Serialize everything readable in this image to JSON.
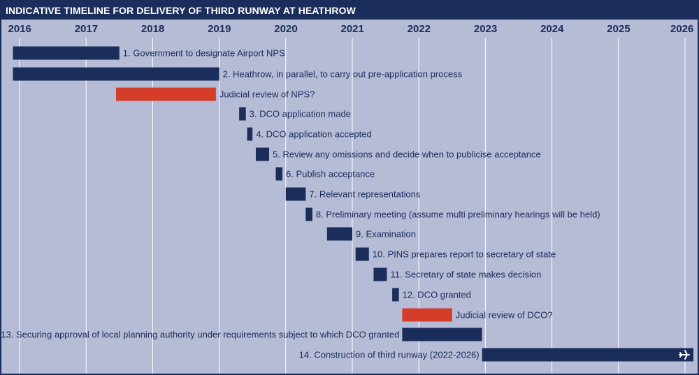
{
  "header": {
    "title": "INDICATIVE TIMELINE FOR DELIVERY OF THIRD RUNWAY AT HEATHROW"
  },
  "colors": {
    "navy": "#1b2d5b",
    "red": "#d43d2a",
    "background": "#b6bbd6",
    "gridline": "#ffffff"
  },
  "chart_data": {
    "type": "gantt",
    "title": "INDICATIVE TIMELINE FOR DELIVERY OF THIRD RUNWAY AT HEATHROW",
    "x_axis": {
      "ticks": [
        "2016",
        "2017",
        "2018",
        "2019",
        "2020",
        "2021",
        "2022",
        "2023",
        "2024",
        "2025",
        "2026"
      ],
      "range": [
        2016,
        2026.2
      ],
      "position": "top",
      "grid": true
    },
    "tasks": [
      {
        "label": "1. Government to designate Airport NPS",
        "start": 2015.9,
        "end": 2017.5,
        "color": "navy",
        "label_side": "right"
      },
      {
        "label": "2. Heathrow, in parallel, to carry out pre-application process",
        "start": 2015.9,
        "end": 2019.0,
        "color": "navy",
        "label_side": "right"
      },
      {
        "label": "Judicial review of NPS?",
        "start": 2017.45,
        "end": 2018.95,
        "color": "red",
        "label_side": "right"
      },
      {
        "label": "3. DCO application made",
        "start": 2019.3,
        "end": 2019.4,
        "color": "navy",
        "label_side": "right"
      },
      {
        "label": "4. DCO application accepted",
        "start": 2019.42,
        "end": 2019.5,
        "color": "navy",
        "label_side": "right"
      },
      {
        "label": "5. Review any omissions and decide when to publicise acceptance",
        "start": 2019.55,
        "end": 2019.75,
        "color": "navy",
        "label_side": "right"
      },
      {
        "label": "6. Publish acceptance",
        "start": 2019.85,
        "end": 2019.95,
        "color": "navy",
        "label_side": "right"
      },
      {
        "label": "7. Relevant representations",
        "start": 2020.0,
        "end": 2020.3,
        "color": "navy",
        "label_side": "right"
      },
      {
        "label": "8. Preliminary meeting (assume multi preliminary hearings will be held)",
        "start": 2020.3,
        "end": 2020.4,
        "color": "navy",
        "label_side": "right"
      },
      {
        "label": "9. Examination",
        "start": 2020.62,
        "end": 2021.0,
        "color": "navy",
        "label_side": "right"
      },
      {
        "label": "10. PINS prepares report to secretary of state",
        "start": 2021.05,
        "end": 2021.25,
        "color": "navy",
        "label_side": "right"
      },
      {
        "label": "11. Secretary of state makes decision",
        "start": 2021.32,
        "end": 2021.52,
        "color": "navy",
        "label_side": "right"
      },
      {
        "label": "12. DCO granted",
        "start": 2021.6,
        "end": 2021.7,
        "color": "navy",
        "label_side": "right"
      },
      {
        "label": "Judicial review of DCO?",
        "start": 2021.75,
        "end": 2022.5,
        "color": "red",
        "label_side": "right"
      },
      {
        "label": "13. Securing approval of local planning authority under requirements subject to which DCO granted",
        "start": 2021.75,
        "end": 2022.95,
        "color": "navy",
        "label_side": "left"
      },
      {
        "label": "14. Construction of third runway (2022-2026)",
        "start": 2022.95,
        "end": 2026.2,
        "color": "navy",
        "label_side": "left",
        "end_icon": "airplane-icon"
      }
    ]
  }
}
